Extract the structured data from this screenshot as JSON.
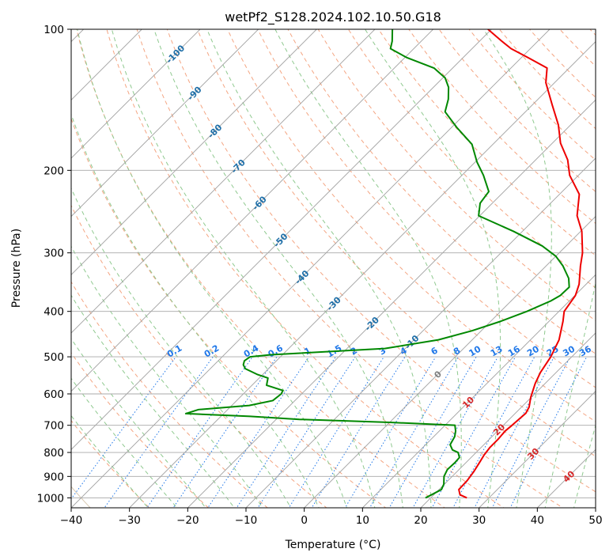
{
  "chart_data": {
    "type": "skew-t",
    "title": "wetPf2_S128.2024.102.10.50.G18",
    "xlabel": "Temperature (°C)",
    "ylabel": "Pressure (hPa)",
    "xlim": [
      -40,
      50
    ],
    "ylim": [
      1050,
      100
    ],
    "y_scale": "log",
    "grid": true,
    "x_ticks": [
      "−40",
      "−30",
      "−20",
      "−10",
      "0",
      "10",
      "20",
      "30",
      "40",
      "50"
    ],
    "x_tick_values": [
      -40,
      -30,
      -20,
      -10,
      0,
      10,
      20,
      30,
      40,
      50
    ],
    "y_ticks": [
      "100",
      "200",
      "300",
      "400",
      "500",
      "600",
      "700",
      "800",
      "900",
      "1000"
    ],
    "y_tick_values": [
      100,
      200,
      300,
      400,
      500,
      600,
      700,
      800,
      900,
      1000
    ],
    "series": [
      {
        "color": "#ee0000",
        "points": [
          [
            1000,
            26.2
          ],
          [
            985,
            24.5
          ],
          [
            960,
            23.4
          ],
          [
            920,
            23.3
          ],
          [
            880,
            22.9
          ],
          [
            840,
            22.3
          ],
          [
            810,
            21.8
          ],
          [
            780,
            21.5
          ],
          [
            750,
            21.5
          ],
          [
            720,
            21.3
          ],
          [
            700,
            21.5
          ],
          [
            660,
            21.8
          ],
          [
            640,
            21.3
          ],
          [
            610,
            19.9
          ],
          [
            570,
            18.3
          ],
          [
            540,
            17.3
          ],
          [
            500,
            16.4
          ],
          [
            460,
            14.9
          ],
          [
            420,
            12.4
          ],
          [
            400,
            10.9
          ],
          [
            370,
            10.1
          ],
          [
            350,
            8.8
          ],
          [
            320,
            5.9
          ],
          [
            300,
            4.0
          ],
          [
            270,
            0.2
          ],
          [
            250,
            -3.3
          ],
          [
            225,
            -6.6
          ],
          [
            205,
            -11.5
          ],
          [
            190,
            -14.5
          ],
          [
            175,
            -18.6
          ],
          [
            160,
            -22.1
          ],
          [
            145,
            -26.6
          ],
          [
            130,
            -31.5
          ],
          [
            121,
            -33.8
          ],
          [
            115,
            -38.8
          ],
          [
            110,
            -43.3
          ],
          [
            106,
            -46.2
          ],
          [
            100,
            -50.6
          ]
        ]
      },
      {
        "color": "#008800",
        "points": [
          [
            1000,
            19.1
          ],
          [
            985,
            19.6
          ],
          [
            960,
            20.4
          ],
          [
            935,
            19.9
          ],
          [
            900,
            18.6
          ],
          [
            870,
            18.0
          ],
          [
            840,
            18.1
          ],
          [
            820,
            18.0
          ],
          [
            800,
            16.9
          ],
          [
            790,
            15.5
          ],
          [
            770,
            14.2
          ],
          [
            740,
            13.6
          ],
          [
            720,
            12.8
          ],
          [
            700,
            11.7
          ],
          [
            690,
            0.0
          ],
          [
            680,
            -16.0
          ],
          [
            670,
            -25.0
          ],
          [
            661,
            -36.5
          ],
          [
            648,
            -35.0
          ],
          [
            635,
            -27.0
          ],
          [
            620,
            -23.8
          ],
          [
            600,
            -23.5
          ],
          [
            590,
            -23.8
          ],
          [
            575,
            -27.5
          ],
          [
            555,
            -28.5
          ],
          [
            545,
            -31.0
          ],
          [
            530,
            -34.0
          ],
          [
            520,
            -35.0
          ],
          [
            510,
            -35.5
          ],
          [
            500,
            -35.2
          ],
          [
            495,
            -32.0
          ],
          [
            480,
            -13.5
          ],
          [
            460,
            -5.8
          ],
          [
            440,
            -1.6
          ],
          [
            420,
            1.7
          ],
          [
            400,
            4.5
          ],
          [
            380,
            6.8
          ],
          [
            370,
            7.5
          ],
          [
            355,
            7.6
          ],
          [
            340,
            6.0
          ],
          [
            320,
            2.9
          ],
          [
            305,
            0.0
          ],
          [
            290,
            -4.1
          ],
          [
            270,
            -11.5
          ],
          [
            250,
            -20.2
          ],
          [
            235,
            -22.1
          ],
          [
            222,
            -22.6
          ],
          [
            205,
            -26.3
          ],
          [
            192,
            -29.7
          ],
          [
            176,
            -33.6
          ],
          [
            162,
            -39.1
          ],
          [
            150,
            -43.8
          ],
          [
            141,
            -45.4
          ],
          [
            133,
            -47.4
          ],
          [
            127,
            -49.6
          ],
          [
            121,
            -53.2
          ],
          [
            115,
            -59.6
          ],
          [
            110,
            -64.0
          ],
          [
            106,
            -65.0
          ],
          [
            100,
            -67.0
          ]
        ]
      }
    ],
    "dry_adiabats_C": [
      -30,
      -20,
      -10,
      0,
      10,
      20,
      30,
      40,
      50,
      60,
      70,
      80,
      90,
      100,
      110,
      120,
      130,
      140,
      150,
      160,
      170,
      180,
      190,
      200
    ],
    "moist_adiabats_C": [
      -30,
      -25,
      -20,
      -15,
      -10,
      -5,
      0,
      5,
      10,
      15,
      20,
      25,
      30,
      35,
      40,
      45,
      50
    ],
    "mixing_ratio_lines": [
      0.1,
      0.2,
      0.4,
      0.6,
      1,
      1.5,
      2,
      3,
      4,
      6,
      8,
      10,
      13,
      16,
      20,
      25,
      30,
      36
    ],
    "mixing_ratio_labels": [
      "0.1",
      "0.2",
      "0.4",
      "0.6",
      "1",
      "1.5",
      "2",
      "3",
      "4",
      "6",
      "8",
      "10",
      "13",
      "16",
      "20",
      "25",
      "30",
      "36"
    ],
    "isotherm_labels_blue": [
      "-100",
      "-90",
      "-80",
      "-70",
      "-60",
      "-50",
      "-40",
      "-30",
      "-20",
      "-10"
    ],
    "isotherm_label_values_blue": [
      -100,
      -90,
      -80,
      -70,
      -60,
      -50,
      -40,
      -30,
      -20,
      -10
    ],
    "isotherm_labels_red": [
      "0",
      "10",
      "20",
      "30",
      "40"
    ],
    "isotherm_label_values_red": [
      0,
      10,
      20,
      30,
      40
    ],
    "colors": {
      "temperature": "#ee0000",
      "dewpoint": "#008800",
      "isotherm": "#a0a0a0",
      "dry_adiabat": "#f4a582",
      "moist_adiabat": "#8fc98f",
      "mixing_ratio": "#1f77e8",
      "isotherm_label_cold": "#1f6fa8",
      "isotherm_label_warm": "#d62728",
      "isotherm_label_zero": "#808080",
      "envelope": "#d8c8b0"
    }
  }
}
